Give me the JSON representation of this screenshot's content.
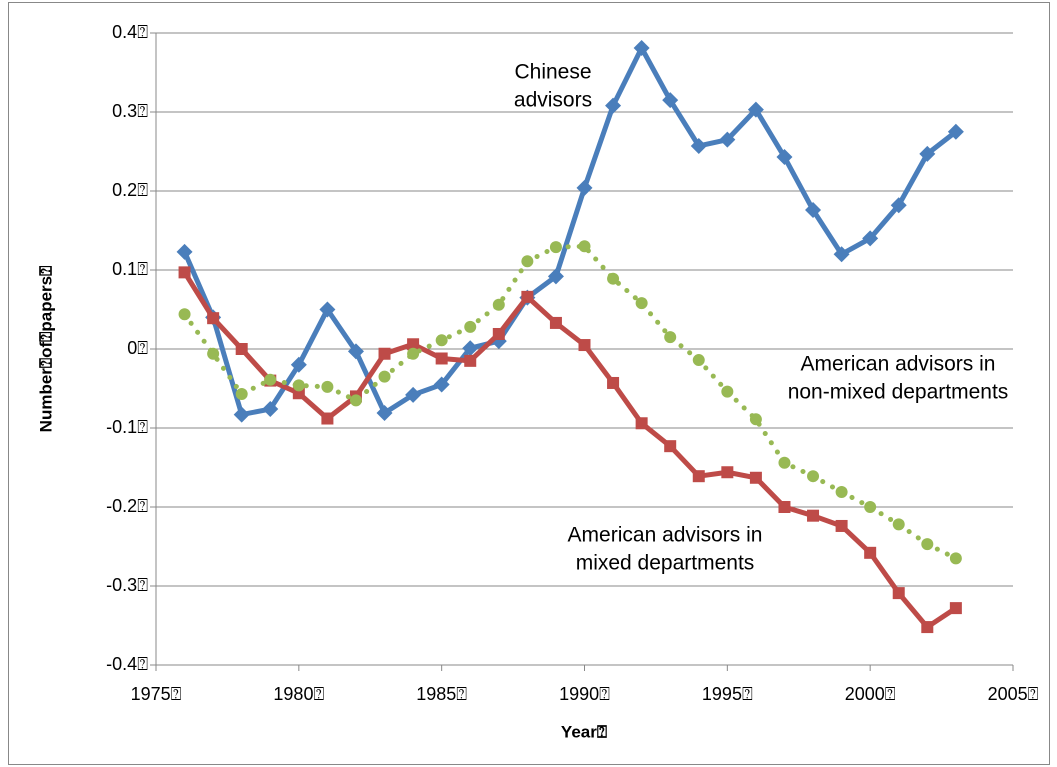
{
  "chart_data": {
    "type": "line",
    "xlabel": "Year⍰",
    "ylabel": "Number⍰of⍰papers⍰",
    "x": [
      1976,
      1977,
      1978,
      1979,
      1980,
      1981,
      1982,
      1983,
      1984,
      1985,
      1986,
      1987,
      1988,
      1989,
      1990,
      1991,
      1992,
      1993,
      1994,
      1995,
      1996,
      1997,
      1998,
      1999,
      2000,
      2001,
      2002,
      2003
    ],
    "series": [
      {
        "color": "#4a7ebb",
        "marker": "diamond",
        "linestyle": "solid",
        "values": [
          0.123,
          0.04,
          -0.083,
          -0.076,
          -0.02,
          0.05,
          -0.003,
          -0.081,
          -0.058,
          -0.045,
          0.001,
          0.01,
          0.065,
          0.092,
          0.204,
          0.308,
          0.381,
          0.315,
          0.257,
          0.265,
          0.303,
          0.243,
          0.176,
          0.12,
          0.14,
          0.182,
          0.247,
          0.275
        ]
      },
      {
        "color": "#be4b48",
        "marker": "square",
        "linestyle": "solid",
        "values": [
          0.097,
          0.039,
          0,
          -0.04,
          -0.056,
          -0.088,
          -0.06,
          -0.006,
          0.006,
          -0.012,
          -0.015,
          0.019,
          0.066,
          0.033,
          0.005,
          -0.043,
          -0.094,
          -0.123,
          -0.161,
          -0.156,
          -0.163,
          -0.2,
          -0.211,
          -0.224,
          -0.258,
          -0.309,
          -0.352,
          -0.328
        ]
      },
      {
        "color": "#98b954",
        "marker": "circle",
        "linestyle": "dotted",
        "values": [
          0.044,
          -0.006,
          -0.057,
          -0.039,
          -0.046,
          -0.048,
          -0.065,
          -0.035,
          -0.006,
          0.011,
          0.028,
          0.056,
          0.111,
          0.129,
          0.13,
          0.089,
          0.058,
          0.015,
          -0.014,
          -0.054,
          -0.089,
          -0.144,
          -0.161,
          -0.181,
          -0.2,
          -0.222,
          -0.247,
          -0.265
        ]
      }
    ],
    "annotations": [
      {
        "lines": [
          "Chinese",
          "advisors"
        ]
      },
      {
        "lines": [
          "American advisors in",
          "non-mixed departments"
        ]
      },
      {
        "lines": [
          "American advisors in",
          "mixed departments"
        ]
      }
    ],
    "xlim": [
      1975,
      2005
    ],
    "xticks": [
      {
        "value": 1975,
        "label": "1975⍰"
      },
      {
        "value": 1980,
        "label": "1980⍰"
      },
      {
        "value": 1985,
        "label": "1985⍰"
      },
      {
        "value": 1990,
        "label": "1990⍰"
      },
      {
        "value": 1995,
        "label": "1995⍰"
      },
      {
        "value": 2000,
        "label": "2000⍰"
      },
      {
        "value": 2005,
        "label": "2005⍰"
      }
    ],
    "ylim": [
      -0.4,
      0.4
    ],
    "yticks": [
      {
        "value": -0.4,
        "label": "-0.4⍰"
      },
      {
        "value": -0.3,
        "label": "-0.3⍰"
      },
      {
        "value": -0.2,
        "label": "-0.2⍰"
      },
      {
        "value": -0.1,
        "label": "-0.1⍰"
      },
      {
        "value": 0,
        "label": "0⍰"
      },
      {
        "value": 0.1,
        "label": "0.1⍰"
      },
      {
        "value": 0.2,
        "label": "0.2⍰"
      },
      {
        "value": 0.3,
        "label": "0.3⍰"
      },
      {
        "value": 0.4,
        "label": "0.4⍰"
      }
    ],
    "grid": true
  }
}
